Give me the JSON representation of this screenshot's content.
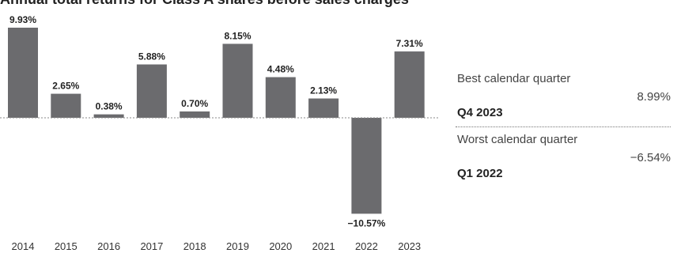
{
  "title": "Annual total returns for Class A shares before sales charges",
  "chart_data": {
    "type": "bar",
    "categories": [
      "2014",
      "2015",
      "2016",
      "2017",
      "2018",
      "2019",
      "2020",
      "2021",
      "2022",
      "2023"
    ],
    "values": [
      9.93,
      2.65,
      0.38,
      5.88,
      0.7,
      8.15,
      4.48,
      2.13,
      -10.57,
      7.31
    ],
    "data_labels": [
      "9.93%",
      "2.65%",
      "0.38%",
      "5.88%",
      "0.70%",
      "8.15%",
      "4.48%",
      "2.13%",
      "−10.57%",
      "7.31%"
    ],
    "ylim": [
      -11.5,
      10.5
    ],
    "grid": false,
    "zero_line": "dotted",
    "bar_color": "#6b6b6e"
  },
  "stats": [
    {
      "label": "Best calendar quarter",
      "value": "8.99%",
      "period": "Q4 2023"
    },
    {
      "label": "Worst calendar quarter",
      "value": "−6.54%",
      "period": "Q1 2022"
    }
  ]
}
